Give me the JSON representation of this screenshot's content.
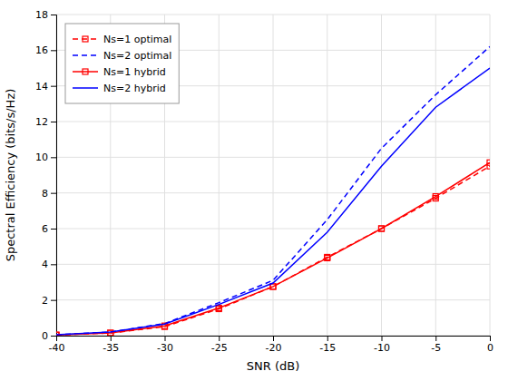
{
  "chart_data": {
    "type": "line",
    "xlabel": "SNR (dB)",
    "ylabel": "Spectral Efficiency (bits/s/Hz)",
    "x": [
      -40,
      -35,
      -30,
      -25,
      -20,
      -15,
      -10,
      -5,
      0
    ],
    "series": [
      {
        "name": "Ns=1 optimal",
        "color": "#FF0000",
        "line_style": "dashed",
        "marker": "square",
        "values": [
          0.04,
          0.15,
          0.5,
          1.5,
          2.75,
          4.4,
          6.0,
          7.7,
          9.5
        ]
      },
      {
        "name": "Ns=2 optimal",
        "color": "#0000FF",
        "line_style": "dashed",
        "values": [
          0.05,
          0.2,
          0.68,
          1.85,
          3.1,
          6.5,
          10.5,
          13.5,
          16.2
        ]
      },
      {
        "name": "Ns=1 hybrid",
        "color": "#FF0000",
        "line_style": "solid",
        "marker": "square",
        "values": [
          0.04,
          0.15,
          0.55,
          1.55,
          2.75,
          4.35,
          6.0,
          7.8,
          9.7
        ]
      },
      {
        "name": "Ns=2 hybrid",
        "color": "#0000FF",
        "line_style": "solid",
        "values": [
          0.05,
          0.2,
          0.65,
          1.75,
          2.95,
          5.8,
          9.5,
          12.8,
          15.0
        ]
      }
    ],
    "xlim": [
      -40,
      0
    ],
    "ylim": [
      0,
      18
    ],
    "xticks": [
      -40,
      -35,
      -30,
      -25,
      -20,
      -15,
      -10,
      -5,
      0
    ],
    "yticks": [
      0,
      2,
      4,
      6,
      8,
      10,
      12,
      14,
      16,
      18
    ],
    "grid": true,
    "legend": "upper left"
  }
}
